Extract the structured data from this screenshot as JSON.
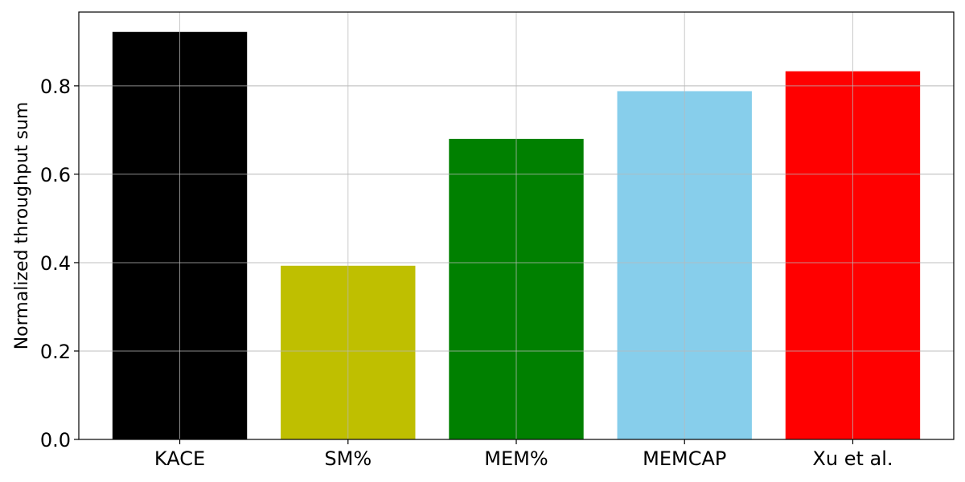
{
  "chart_data": {
    "type": "bar",
    "title": "",
    "xlabel": "",
    "ylabel": "Normalized throughput sum",
    "categories": [
      "KACE",
      "SM%",
      "MEM%",
      "MEMCAP",
      "Xu et al."
    ],
    "values": [
      0.922,
      0.393,
      0.68,
      0.788,
      0.833
    ],
    "colors": [
      "#000000",
      "#bfbf00",
      "#008000",
      "#87ceeb",
      "#ff0000"
    ],
    "ylim": [
      0,
      0.967
    ],
    "yticks": [
      0.0,
      0.2,
      0.4,
      0.6,
      0.8
    ],
    "ytick_labels": [
      "0.0",
      "0.2",
      "0.4",
      "0.6",
      "0.8"
    ],
    "grid": true,
    "legend": "none"
  }
}
